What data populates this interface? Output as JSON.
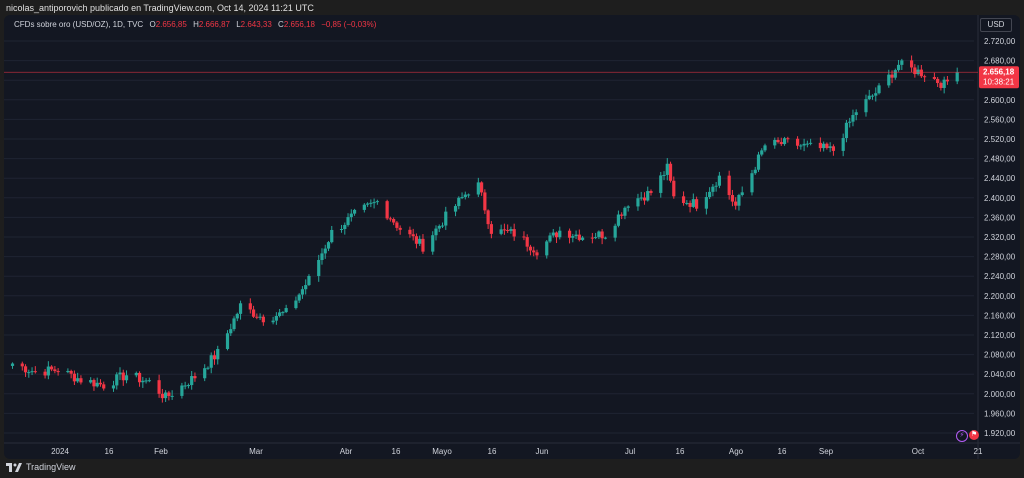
{
  "header": {
    "published_by": "nicolas_antiporovich publicado en TradingView.com, Oct 14, 2024 11:21 UTC"
  },
  "legend": {
    "symbol": "CFDs sobre oro (USD/OZ), 1D, TVC",
    "open_label": "O",
    "open": "2.656,85",
    "high_label": "H",
    "high": "2.666,87",
    "low_label": "L",
    "low": "2.643,33",
    "close_label": "C",
    "close": "2.656,18",
    "change": "−0,85 (−0,03%)"
  },
  "currency": "USD",
  "price_tag": {
    "price": "2.656,18",
    "countdown": "10:38:21",
    "color": "#f23645"
  },
  "footer": {
    "brand": "TradingView"
  },
  "colors": {
    "up": "#26a69a",
    "down": "#f23645",
    "background": "#131722",
    "grid": "#1f2433",
    "text": "#d1d4dc"
  },
  "chart_data": {
    "type": "candlestick",
    "title": "CFDs sobre oro (USD/OZ), 1D, TVC",
    "y_axis": {
      "ticks": [
        "2.720,00",
        "2.680,00",
        "2.640,00",
        "2.600,00",
        "2.560,00",
        "2.520,00",
        "2.480,00",
        "2.440,00",
        "2.400,00",
        "2.360,00",
        "2.320,00",
        "2.280,00",
        "2.240,00",
        "2.200,00",
        "2.160,00",
        "2.120,00",
        "2.080,00",
        "2.040,00",
        "2.000,00",
        "1.960,00",
        "1.920,00"
      ],
      "tick_values": [
        2720,
        2680,
        2640,
        2600,
        2560,
        2520,
        2480,
        2440,
        2400,
        2360,
        2320,
        2280,
        2240,
        2200,
        2160,
        2120,
        2080,
        2040,
        2000,
        1960,
        1920
      ],
      "position": "right"
    },
    "x_axis": {
      "labels": [
        "2024",
        "16",
        "Feb",
        "Mar",
        "Abr",
        "16",
        "Mayo",
        "16",
        "Jun",
        "Jul",
        "16",
        "Ago",
        "16",
        "Sep",
        "Oct",
        "21"
      ]
    },
    "last_price": 2656.18,
    "close_path": [
      {
        "date": "2023-12-29",
        "close": 2062
      },
      {
        "date": "2024-01-05",
        "close": 2045
      },
      {
        "date": "2024-01-12",
        "close": 2049
      },
      {
        "date": "2024-01-19",
        "close": 2029
      },
      {
        "date": "2024-01-26",
        "close": 2018
      },
      {
        "date": "2024-02-02",
        "close": 2039
      },
      {
        "date": "2024-02-09",
        "close": 2024
      },
      {
        "date": "2024-02-14",
        "close": 1992
      },
      {
        "date": "2024-02-23",
        "close": 2035
      },
      {
        "date": "2024-03-01",
        "close": 2083
      },
      {
        "date": "2024-03-08",
        "close": 2179
      },
      {
        "date": "2024-03-15",
        "close": 2155
      },
      {
        "date": "2024-03-22",
        "close": 2165
      },
      {
        "date": "2024-03-29",
        "close": 2233
      },
      {
        "date": "2024-04-05",
        "close": 2329
      },
      {
        "date": "2024-04-12",
        "close": 2365
      },
      {
        "date": "2024-04-19",
        "close": 2392
      },
      {
        "date": "2024-04-26",
        "close": 2337
      },
      {
        "date": "2024-05-03",
        "close": 2301
      },
      {
        "date": "2024-05-10",
        "close": 2361
      },
      {
        "date": "2024-05-17",
        "close": 2415
      },
      {
        "date": "2024-05-20",
        "close": 2425
      },
      {
        "date": "2024-05-24",
        "close": 2334
      },
      {
        "date": "2024-05-31",
        "close": 2327
      },
      {
        "date": "2024-06-07",
        "close": 2293
      },
      {
        "date": "2024-06-14",
        "close": 2333
      },
      {
        "date": "2024-06-21",
        "close": 2322
      },
      {
        "date": "2024-06-28",
        "close": 2326
      },
      {
        "date": "2024-07-05",
        "close": 2391
      },
      {
        "date": "2024-07-12",
        "close": 2411
      },
      {
        "date": "2024-07-17",
        "close": 2460
      },
      {
        "date": "2024-07-19",
        "close": 2400
      },
      {
        "date": "2024-07-26",
        "close": 2387
      },
      {
        "date": "2024-08-02",
        "close": 2443
      },
      {
        "date": "2024-08-07",
        "close": 2383
      },
      {
        "date": "2024-08-16",
        "close": 2507
      },
      {
        "date": "2024-08-23",
        "close": 2512
      },
      {
        "date": "2024-08-30",
        "close": 2503
      },
      {
        "date": "2024-09-06",
        "close": 2497
      },
      {
        "date": "2024-09-13",
        "close": 2577
      },
      {
        "date": "2024-09-20",
        "close": 2621
      },
      {
        "date": "2024-09-26",
        "close": 2672
      },
      {
        "date": "2024-10-04",
        "close": 2653
      },
      {
        "date": "2024-10-10",
        "close": 2631
      },
      {
        "date": "2024-10-14",
        "close": 2656
      }
    ]
  }
}
